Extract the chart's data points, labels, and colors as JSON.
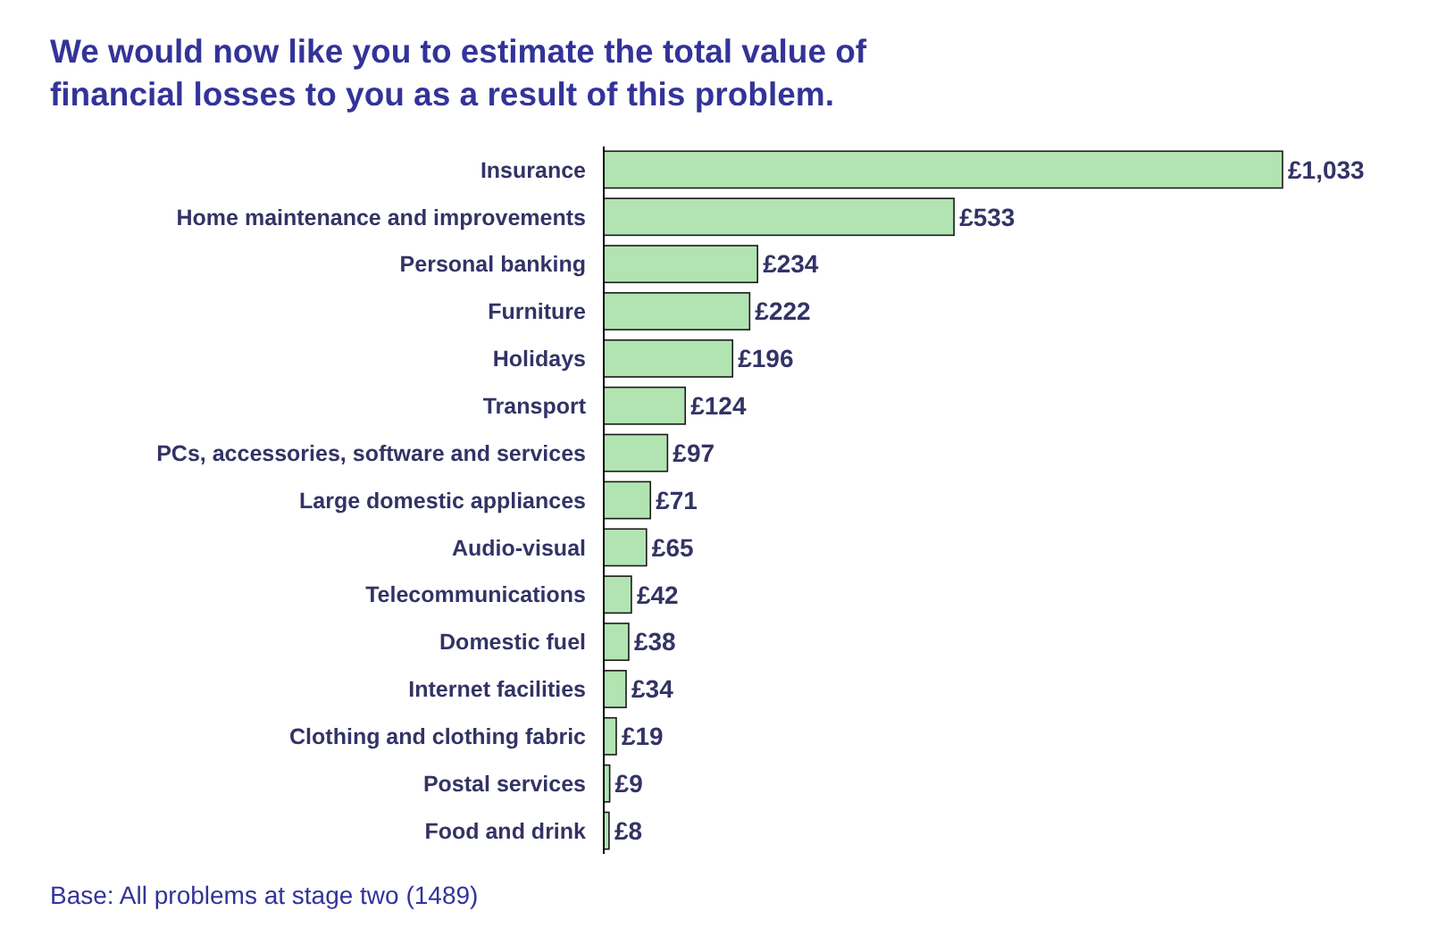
{
  "chart_data": {
    "type": "bar",
    "orientation": "horizontal",
    "title": "We would now like you to estimate the total value of financial losses to you as a result of this problem.",
    "categories": [
      "Insurance",
      "Home maintenance and improvements",
      "Personal banking",
      "Furniture",
      "Holidays",
      "Transport",
      "PCs, accessories, software and services",
      "Large domestic appliances",
      "Audio-visual",
      "Telecommunications",
      "Domestic fuel",
      "Internet facilities",
      "Clothing and clothing fabric",
      "Postal services",
      "Food and drink"
    ],
    "values": [
      1033,
      533,
      234,
      222,
      196,
      124,
      97,
      71,
      65,
      42,
      38,
      34,
      19,
      9,
      8
    ],
    "value_labels": [
      "£1,033",
      "£533",
      "£234",
      "£222",
      "£196",
      "£124",
      "£97",
      "£71",
      "£65",
      "£42",
      "£38",
      "£34",
      "£19",
      "£9",
      "£8"
    ],
    "color": "#b2e4b2",
    "annotations": [
      "Base: All problems at stage two (1489)"
    ]
  }
}
